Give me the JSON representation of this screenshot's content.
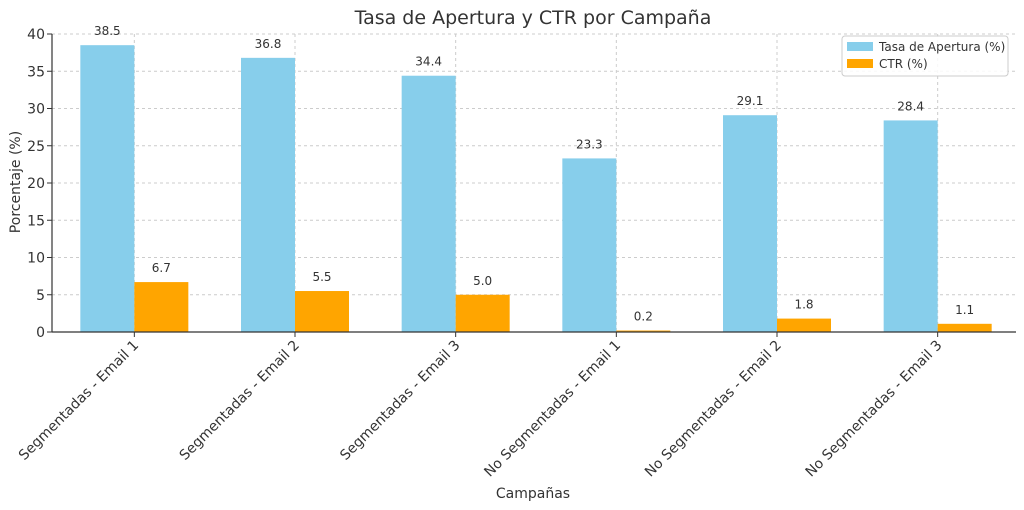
{
  "chart_data": {
    "type": "bar",
    "title": "Tasa de Apertura y CTR por Campaña",
    "xlabel": "Campañas",
    "ylabel": "Porcentaje (%)",
    "ylim": [
      0,
      40
    ],
    "yticks": [
      0,
      5,
      10,
      15,
      20,
      25,
      30,
      35,
      40
    ],
    "grid": true,
    "legend_position": "top-right",
    "categories": [
      "Segmentadas - Email 1",
      "Segmentadas - Email 2",
      "Segmentadas - Email 3",
      "No Segmentadas - Email 1",
      "No Segmentadas - Email 2",
      "No Segmentadas - Email 3"
    ],
    "series": [
      {
        "name": "Tasa de Apertura (%)",
        "color": "#87CEEB",
        "values": [
          38.5,
          36.8,
          34.4,
          23.3,
          29.1,
          28.4
        ]
      },
      {
        "name": "CTR (%)",
        "color": "#FFA500",
        "values": [
          6.7,
          5.5,
          5.0,
          0.2,
          1.8,
          1.1
        ]
      }
    ]
  }
}
